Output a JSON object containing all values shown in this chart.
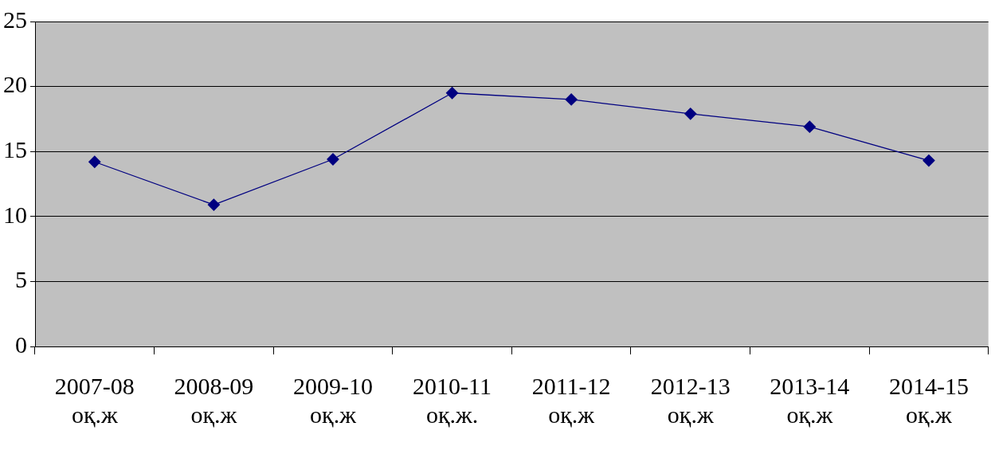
{
  "chart_data": {
    "type": "line",
    "categories": [
      "2007-08 оқ.ж",
      "2008-09 оқ.ж",
      "2009-10 оқ.ж",
      "2010-11 оқ.ж.",
      "2011-12 оқ.ж",
      "2012-13 оқ.ж",
      "2013-14 оқ.ж",
      "2014-15 оқ.ж"
    ],
    "series": [
      {
        "color": "#000080",
        "values": [
          14.2,
          10.9,
          14.4,
          19.5,
          19.0,
          17.9,
          16.9,
          14.3
        ]
      }
    ],
    "ylim": [
      0,
      25
    ],
    "yticks": [
      0,
      5,
      10,
      15,
      20,
      25
    ],
    "grid": "y",
    "legend": false,
    "marker": "diamond",
    "line_style": "solid"
  }
}
